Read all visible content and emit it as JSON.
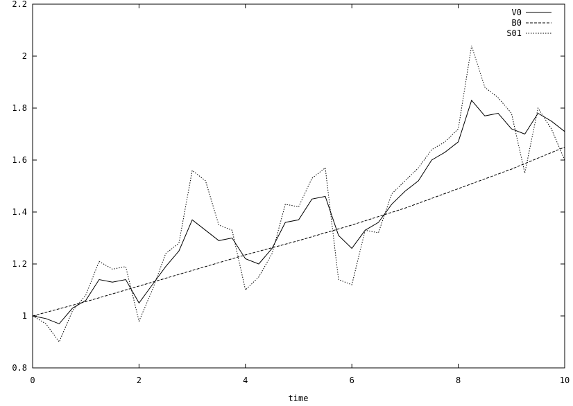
{
  "chart_data": {
    "type": "line",
    "title": "",
    "xlabel": "time",
    "ylabel": "",
    "xlim": [
      0,
      10
    ],
    "ylim": [
      0.8,
      2.2
    ],
    "grid": false,
    "legend_position": "top-right",
    "x_ticks": [
      0,
      2,
      4,
      6,
      8,
      10
    ],
    "x_tick_labels": [
      "0",
      "2",
      "4",
      "6",
      "8",
      "10"
    ],
    "y_ticks": [
      0.8,
      1,
      1.2,
      1.4,
      1.6,
      1.8,
      2,
      2.2
    ],
    "y_tick_labels": [
      "0.8",
      "1",
      "1.2",
      "1.4",
      "1.6",
      "1.8",
      "2",
      "2.2"
    ],
    "series": [
      {
        "name": "V0",
        "style": "solid",
        "x": [
          0,
          0.25,
          0.5,
          0.75,
          1,
          1.25,
          1.5,
          1.75,
          2,
          2.25,
          2.5,
          2.75,
          3,
          3.25,
          3.5,
          3.75,
          4,
          4.25,
          4.5,
          4.75,
          5,
          5.25,
          5.5,
          5.75,
          6,
          6.25,
          6.5,
          6.75,
          7,
          7.25,
          7.5,
          7.75,
          8,
          8.25,
          8.5,
          8.75,
          9,
          9.25,
          9.5,
          9.75,
          10
        ],
        "y": [
          1.0,
          0.99,
          0.97,
          1.03,
          1.06,
          1.14,
          1.13,
          1.14,
          1.05,
          1.12,
          1.19,
          1.25,
          1.37,
          1.33,
          1.29,
          1.3,
          1.22,
          1.2,
          1.26,
          1.36,
          1.37,
          1.45,
          1.46,
          1.31,
          1.26,
          1.33,
          1.36,
          1.43,
          1.48,
          1.52,
          1.6,
          1.63,
          1.67,
          1.83,
          1.77,
          1.78,
          1.72,
          1.7,
          1.78,
          1.75,
          1.71
        ]
      },
      {
        "name": "B0",
        "style": "dashed",
        "x": [
          0,
          1,
          2,
          3,
          4,
          5,
          6,
          7,
          8,
          9,
          10
        ],
        "y": [
          1.0,
          1.055,
          1.115,
          1.175,
          1.235,
          1.29,
          1.35,
          1.415,
          1.49,
          1.565,
          1.65
        ]
      },
      {
        "name": "S01",
        "style": "dotted",
        "x": [
          0,
          0.25,
          0.5,
          0.75,
          1,
          1.25,
          1.5,
          1.75,
          2,
          2.25,
          2.5,
          2.75,
          3,
          3.25,
          3.5,
          3.75,
          4,
          4.25,
          4.5,
          4.75,
          5,
          5.25,
          5.5,
          5.75,
          6,
          6.25,
          6.5,
          6.75,
          7,
          7.25,
          7.5,
          7.75,
          8,
          8.25,
          8.5,
          8.75,
          9,
          9.25,
          9.5,
          9.75,
          10
        ],
        "y": [
          1.0,
          0.97,
          0.9,
          1.02,
          1.08,
          1.21,
          1.18,
          1.19,
          0.98,
          1.1,
          1.24,
          1.28,
          1.56,
          1.52,
          1.35,
          1.33,
          1.1,
          1.15,
          1.24,
          1.43,
          1.42,
          1.53,
          1.57,
          1.14,
          1.12,
          1.33,
          1.32,
          1.47,
          1.52,
          1.57,
          1.64,
          1.67,
          1.72,
          2.04,
          1.88,
          1.84,
          1.78,
          1.55,
          1.8,
          1.72,
          1.6
        ]
      }
    ]
  }
}
